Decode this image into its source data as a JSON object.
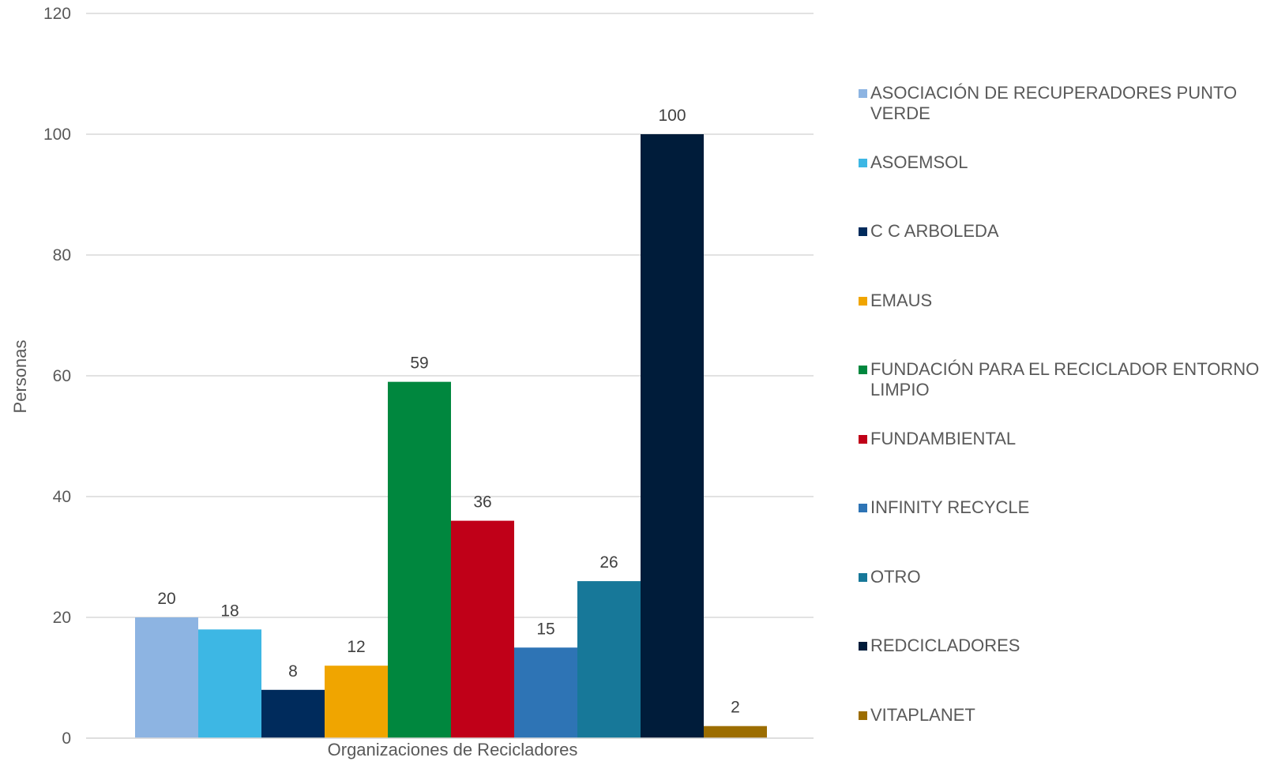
{
  "chart_data": {
    "type": "bar",
    "xlabel": "Organizaciones de Recicladores",
    "ylabel": "Personas",
    "ylim": [
      0,
      120
    ],
    "yticks": [
      0,
      20,
      40,
      60,
      80,
      100,
      120
    ],
    "grid": true,
    "legend_position": "right",
    "series": [
      {
        "name": "ASOCIACIÓN DE RECUPERADORES PUNTO VERDE",
        "value": 20,
        "color": "#8DB4E2"
      },
      {
        "name": "ASOEMSOL",
        "value": 18,
        "color": "#3DB7E4"
      },
      {
        "name": "C C ARBOLEDA",
        "value": 8,
        "color": "#002B5C"
      },
      {
        "name": "EMAUS",
        "value": 12,
        "color": "#F0A500"
      },
      {
        "name": "FUNDACIÓN PARA EL RECICLADOR ENTORNO LIMPIO",
        "value": 59,
        "color": "#00873E"
      },
      {
        "name": "FUNDAMBIENTAL",
        "value": 36,
        "color": "#C00018"
      },
      {
        "name": "INFINITY RECYCLE",
        "value": 15,
        "color": "#2E74B5"
      },
      {
        "name": "OTRO",
        "value": 26,
        "color": "#177899"
      },
      {
        "name": "REDCICLADORES",
        "value": 100,
        "color": "#001C3A"
      },
      {
        "name": "VITAPLANET",
        "value": 2,
        "color": "#9C6D00"
      }
    ]
  }
}
